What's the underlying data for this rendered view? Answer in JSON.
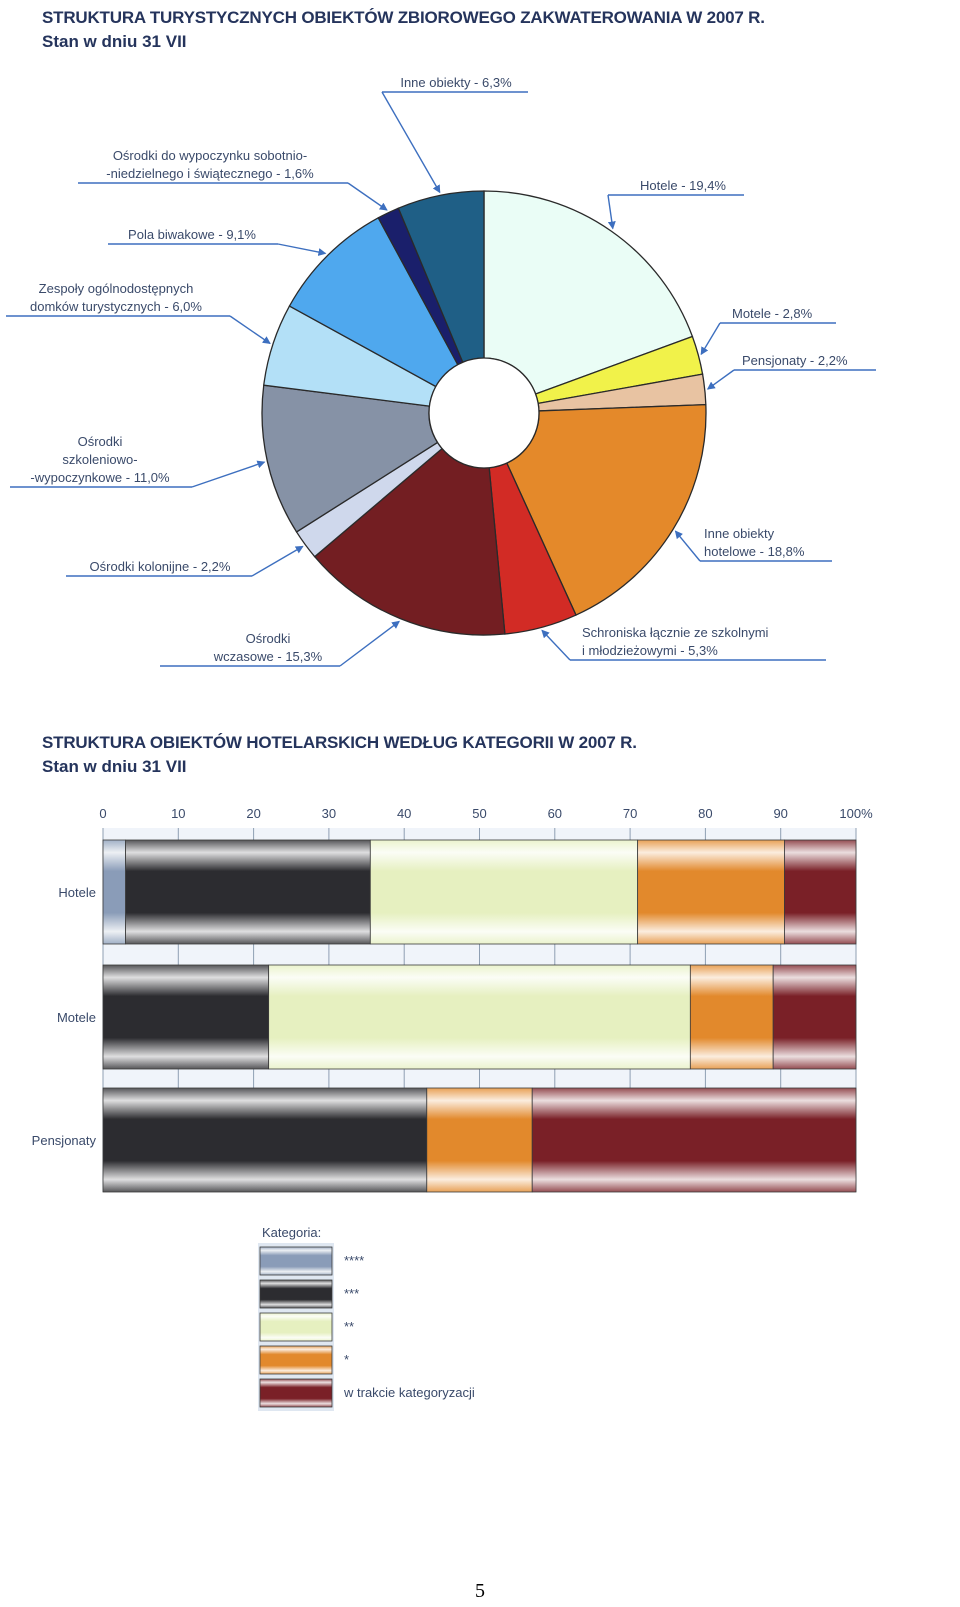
{
  "chart_data": [
    {
      "type": "pie",
      "title": "STRUKTURA TURYSTYCZNYCH OBIEKTÓW ZBIOROWEGO ZAKWATEROWANIA W 2007 R.",
      "subtitle": "Stan w dniu 31 VII",
      "slices": [
        {
          "label": [
            "Hotele - 19,4%"
          ],
          "value": 19.4,
          "color": "#eafdf6"
        },
        {
          "label": [
            "Motele - 2,8%"
          ],
          "value": 2.8,
          "color": "#f1f24a"
        },
        {
          "label": [
            "Pensjonaty - 2,2%"
          ],
          "value": 2.2,
          "color": "#e8c3a2"
        },
        {
          "label": [
            "Inne obiekty",
            "hotelowe - 18,8%"
          ],
          "value": 18.8,
          "color": "#e4892a"
        },
        {
          "label": [
            "Schroniska łącznie ze szkolnymi",
            "i młodzieżowymi - 5,3%"
          ],
          "value": 5.3,
          "color": "#d22b25"
        },
        {
          "label": [
            "Ośrodki",
            "wczasowe - 15,3%"
          ],
          "value": 15.3,
          "color": "#731e22"
        },
        {
          "label": [
            "Ośrodki kolonijne - 2,2%"
          ],
          "value": 2.2,
          "color": "#cfd8ec"
        },
        {
          "label": [
            "Ośrodki",
            "szkoleniowo-",
            "-wypoczynkowe - 11,0%"
          ],
          "value": 11.0,
          "color": "#8692a6"
        },
        {
          "label": [
            "Zespoły ogólnodostępnych",
            "domków turystycznych - 6,0%"
          ],
          "value": 6.0,
          "color": "#b3e0f7"
        },
        {
          "label": [
            "Pola biwakowe - 9,1%"
          ],
          "value": 9.1,
          "color": "#4fa8ee"
        },
        {
          "label": [
            "Ośrodki do wypoczynku sobotnio-",
            "-niedzielnego i świątecznego - 1,6%"
          ],
          "value": 1.6,
          "color": "#1a1f6b"
        },
        {
          "label": [
            "Inne obiekty - 6,3%"
          ],
          "value": 6.3,
          "color": "#1f5f86"
        }
      ]
    },
    {
      "type": "bar",
      "stacked": "100%",
      "orientation": "horizontal",
      "title": "STRUKTURA OBIEKTÓW HOTELARSKICH WEDŁUG KATEGORII W 2007 R.",
      "subtitle": "Stan w dniu 31 VII",
      "categories": [
        "Hotele",
        "Motele",
        "Pensjonaty"
      ],
      "x_ticks": [
        "0",
        "10",
        "20",
        "30",
        "40",
        "50",
        "60",
        "70",
        "80",
        "90",
        "100%"
      ],
      "xlim": [
        0,
        100
      ],
      "legend_title": "Kategoria:",
      "series": [
        {
          "name": "****",
          "values": [
            3.0,
            0,
            0
          ],
          "color": "#8a9cb8"
        },
        {
          "name": "***",
          "values": [
            32.5,
            22.0,
            43.0
          ],
          "color": "#2c2c30"
        },
        {
          "name": "**",
          "values": [
            35.5,
            56.0,
            0
          ],
          "color": "#e6f0c0"
        },
        {
          "name": "*",
          "values": [
            19.5,
            11.0,
            14.0
          ],
          "color": "#e2892c"
        },
        {
          "name": "w trakcie kategoryzacji",
          "values": [
            9.5,
            11.0,
            43.0
          ],
          "color": "#7a2027"
        }
      ]
    }
  ],
  "page_number": "5"
}
